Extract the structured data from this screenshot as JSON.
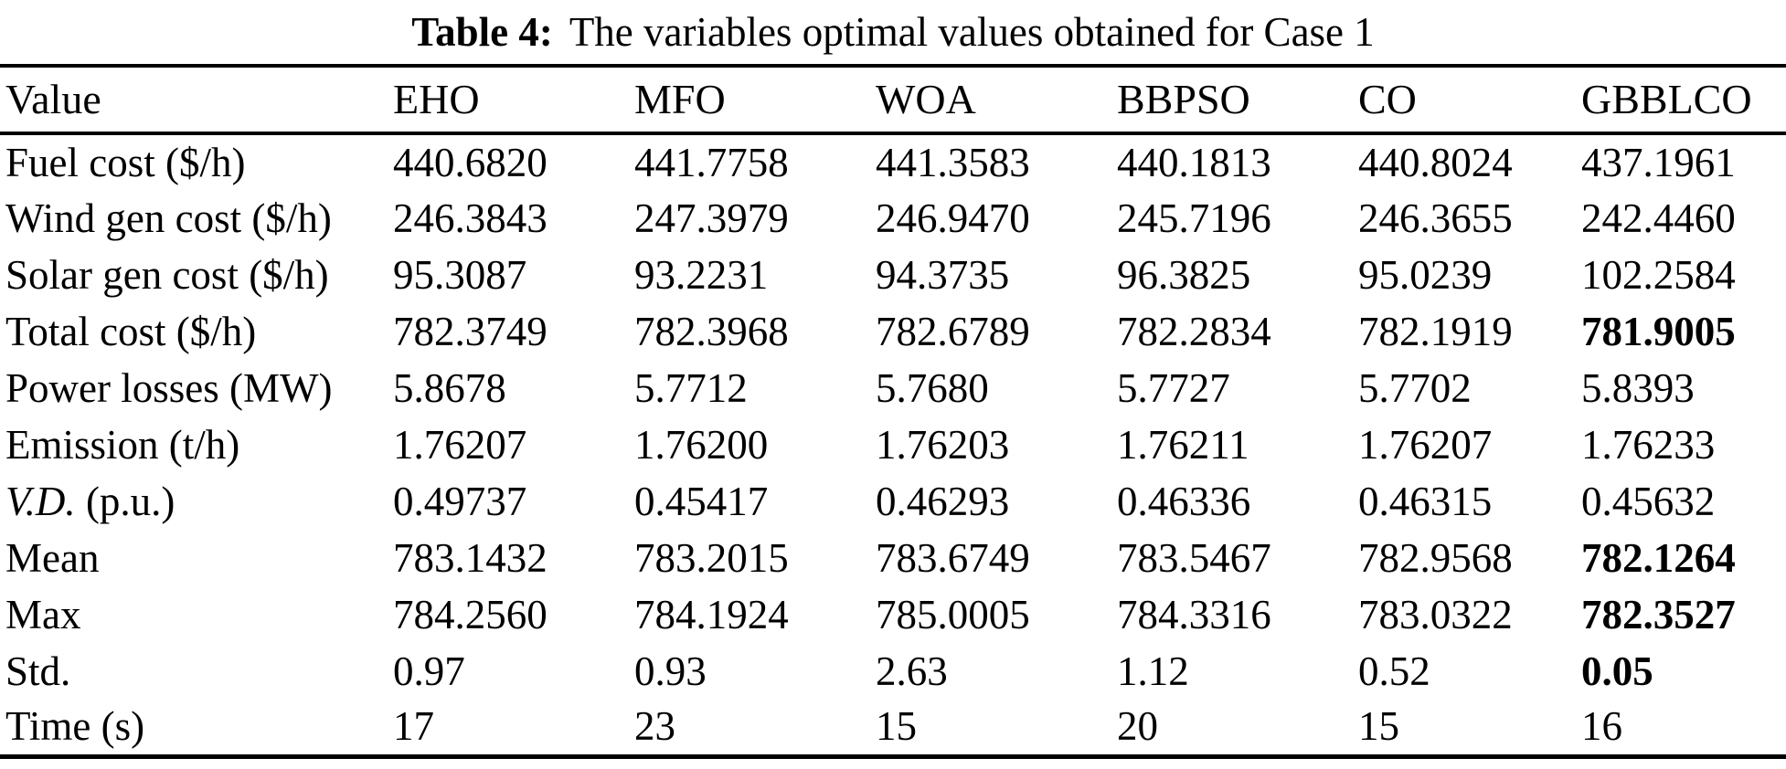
{
  "caption": {
    "label": "Table 4:",
    "text": "The variables optimal values obtained for Case 1"
  },
  "table": {
    "columns": [
      "Value",
      "EHO",
      "MFO",
      "WOA",
      "BBPSO",
      "CO",
      "GBBLCO"
    ],
    "rows": [
      {
        "label": "Fuel cost ($/h)",
        "values": [
          "440.6820",
          "441.7758",
          "441.3583",
          "440.1813",
          "440.8024",
          "437.1961"
        ],
        "bold_indices": []
      },
      {
        "label": "Wind gen cost ($/h)",
        "values": [
          "246.3843",
          "247.3979",
          "246.9470",
          "245.7196",
          "246.3655",
          "242.4460"
        ],
        "bold_indices": []
      },
      {
        "label": "Solar gen cost ($/h)",
        "values": [
          "95.3087",
          "93.2231",
          "94.3735",
          "96.3825",
          "95.0239",
          "102.2584"
        ],
        "bold_indices": []
      },
      {
        "label": "Total cost ($/h)",
        "values": [
          "782.3749",
          "782.3968",
          "782.6789",
          "782.2834",
          "782.1919",
          "781.9005"
        ],
        "bold_indices": [
          5
        ]
      },
      {
        "label": "Power losses (MW)",
        "values": [
          "5.8678",
          "5.7712",
          "5.7680",
          "5.7727",
          "5.7702",
          "5.8393"
        ],
        "bold_indices": []
      },
      {
        "label": "Emission (t/h)",
        "values": [
          "1.76207",
          "1.76200",
          "1.76203",
          "1.76211",
          "1.76207",
          "1.76233"
        ],
        "bold_indices": []
      },
      {
        "label_italic_prefix": "V.D.",
        "label_rest": " (p.u.)",
        "values": [
          "0.49737",
          "0.45417",
          "0.46293",
          "0.46336",
          "0.46315",
          "0.45632"
        ],
        "bold_indices": []
      },
      {
        "label": "Mean",
        "values": [
          "783.1432",
          "783.2015",
          "783.6749",
          "783.5467",
          "782.9568",
          "782.1264"
        ],
        "bold_indices": [
          5
        ]
      },
      {
        "label": "Max",
        "values": [
          "784.2560",
          "784.1924",
          "785.0005",
          "784.3316",
          "783.0322",
          "782.3527"
        ],
        "bold_indices": [
          5
        ]
      },
      {
        "label": "Std.",
        "values": [
          "0.97",
          "0.93",
          "2.63",
          "1.12",
          "0.52",
          "0.05"
        ],
        "bold_indices": [
          5
        ]
      },
      {
        "label": "Time (s)",
        "values": [
          "17",
          "23",
          "15",
          "20",
          "15",
          "16"
        ],
        "bold_indices": []
      }
    ]
  }
}
